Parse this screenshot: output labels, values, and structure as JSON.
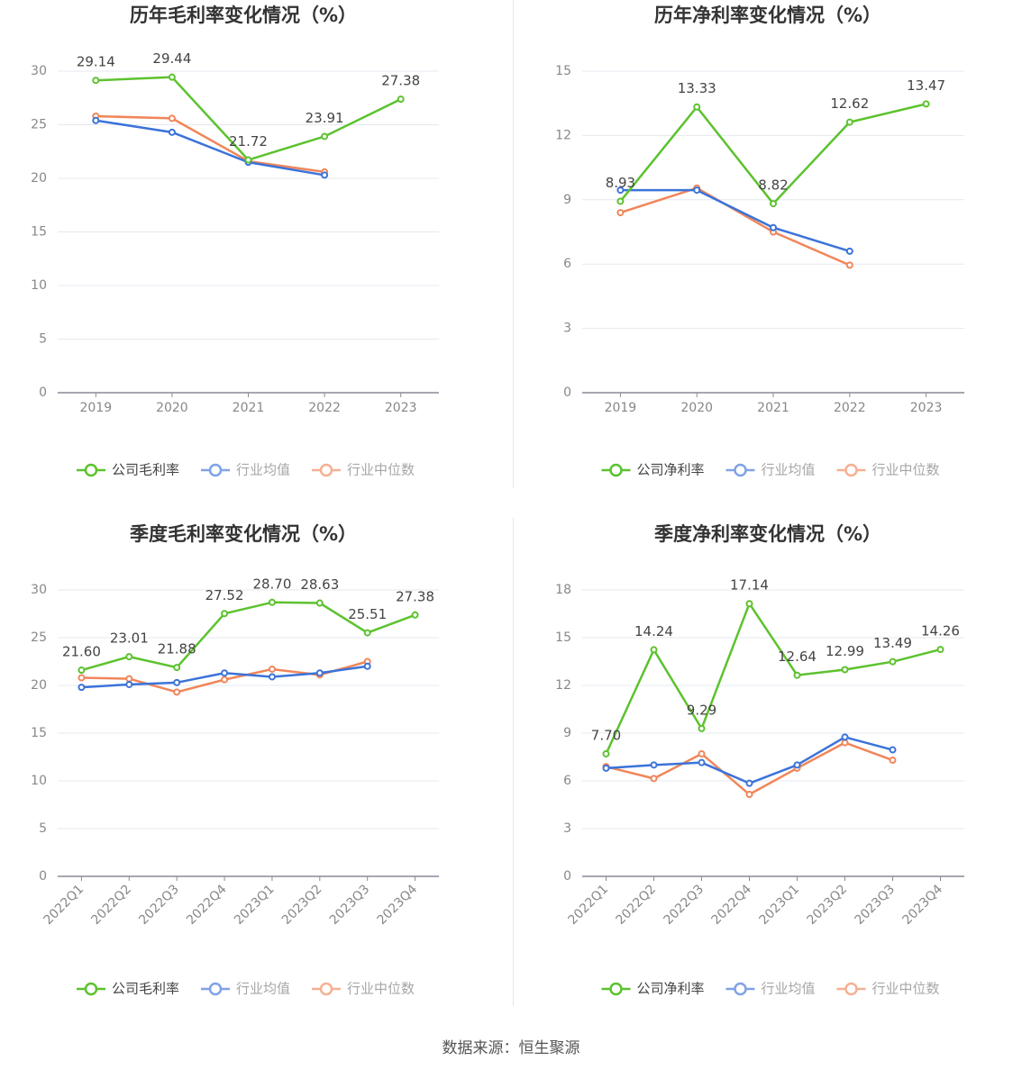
{
  "colors": {
    "company": "#5cc22e",
    "industry_avg": "#3b73d9",
    "industry_median": "#f0865a",
    "axis": "#8a8a99",
    "grid": "#e6e8f0",
    "tick_text": "#888888",
    "title_text": "#333333"
  },
  "source_text": "数据来源：恒生聚源",
  "chart_data": [
    {
      "type": "line",
      "title": "历年毛利率变化情况（%）",
      "categories": [
        "2019",
        "2020",
        "2021",
        "2022",
        "2023"
      ],
      "ylim": [
        0,
        30
      ],
      "yticks": [
        0,
        5,
        10,
        15,
        20,
        25,
        30
      ],
      "rotate_xlabels": false,
      "series": [
        {
          "name": "公司毛利率",
          "key": "company",
          "values": [
            29.14,
            29.44,
            21.72,
            23.91,
            27.38
          ],
          "labels": [
            "29.14",
            "29.44",
            "21.72",
            "23.91",
            "27.38"
          ]
        },
        {
          "name": "行业均值",
          "key": "industry_avg",
          "values": [
            25.4,
            24.3,
            21.5,
            20.3,
            null
          ]
        },
        {
          "name": "行业中位数",
          "key": "industry_median",
          "values": [
            25.8,
            25.6,
            21.6,
            20.6,
            null
          ]
        }
      ]
    },
    {
      "type": "line",
      "title": "历年净利率变化情况（%）",
      "categories": [
        "2019",
        "2020",
        "2021",
        "2022",
        "2023"
      ],
      "ylim": [
        0,
        15
      ],
      "yticks": [
        0,
        3,
        6,
        9,
        12,
        15
      ],
      "rotate_xlabels": false,
      "series": [
        {
          "name": "公司净利率",
          "key": "company",
          "values": [
            8.93,
            13.33,
            8.82,
            12.62,
            13.47
          ],
          "labels": [
            "8.93",
            "13.33",
            "8.82",
            "12.62",
            "13.47"
          ]
        },
        {
          "name": "行业均值",
          "key": "industry_avg",
          "values": [
            9.45,
            9.45,
            7.7,
            6.6,
            null
          ]
        },
        {
          "name": "行业中位数",
          "key": "industry_median",
          "values": [
            8.4,
            9.55,
            7.5,
            5.95,
            null
          ]
        }
      ]
    },
    {
      "type": "line",
      "title": "季度毛利率变化情况（%）",
      "categories": [
        "2022Q1",
        "2022Q2",
        "2022Q3",
        "2022Q4",
        "2023Q1",
        "2023Q2",
        "2023Q3",
        "2023Q4"
      ],
      "ylim": [
        0,
        30
      ],
      "yticks": [
        0,
        5,
        10,
        15,
        20,
        25,
        30
      ],
      "rotate_xlabels": true,
      "series": [
        {
          "name": "公司毛利率",
          "key": "company",
          "values": [
            21.6,
            23.01,
            21.88,
            27.52,
            28.7,
            28.63,
            25.51,
            27.38
          ],
          "labels": [
            "21.60",
            "23.01",
            "21.88",
            "27.52",
            "28.70",
            "28.63",
            "25.51",
            "27.38"
          ]
        },
        {
          "name": "行业均值",
          "key": "industry_avg",
          "values": [
            19.8,
            20.1,
            20.3,
            21.3,
            20.9,
            21.3,
            22.0,
            null
          ]
        },
        {
          "name": "行业中位数",
          "key": "industry_median",
          "values": [
            20.8,
            20.7,
            19.3,
            20.6,
            21.7,
            21.1,
            22.5,
            null
          ]
        }
      ]
    },
    {
      "type": "line",
      "title": "季度净利率变化情况（%）",
      "categories": [
        "2022Q1",
        "2022Q2",
        "2022Q3",
        "2022Q4",
        "2023Q1",
        "2023Q2",
        "2023Q3",
        "2023Q4"
      ],
      "ylim": [
        0,
        18
      ],
      "yticks": [
        0,
        3,
        6,
        9,
        12,
        15,
        18
      ],
      "rotate_xlabels": true,
      "series": [
        {
          "name": "公司净利率",
          "key": "company",
          "values": [
            7.7,
            14.24,
            9.29,
            17.14,
            12.64,
            12.99,
            13.49,
            14.26
          ],
          "labels": [
            "7.70",
            "14.24",
            "9.29",
            "17.14",
            "12.64",
            "12.99",
            "13.49",
            "14.26"
          ]
        },
        {
          "name": "行业均值",
          "key": "industry_avg",
          "values": [
            6.8,
            7.0,
            7.15,
            5.85,
            7.0,
            8.75,
            7.95,
            null
          ]
        },
        {
          "name": "行业中位数",
          "key": "industry_median",
          "values": [
            6.9,
            6.15,
            7.7,
            5.15,
            6.8,
            8.4,
            7.3,
            null
          ]
        }
      ]
    }
  ]
}
